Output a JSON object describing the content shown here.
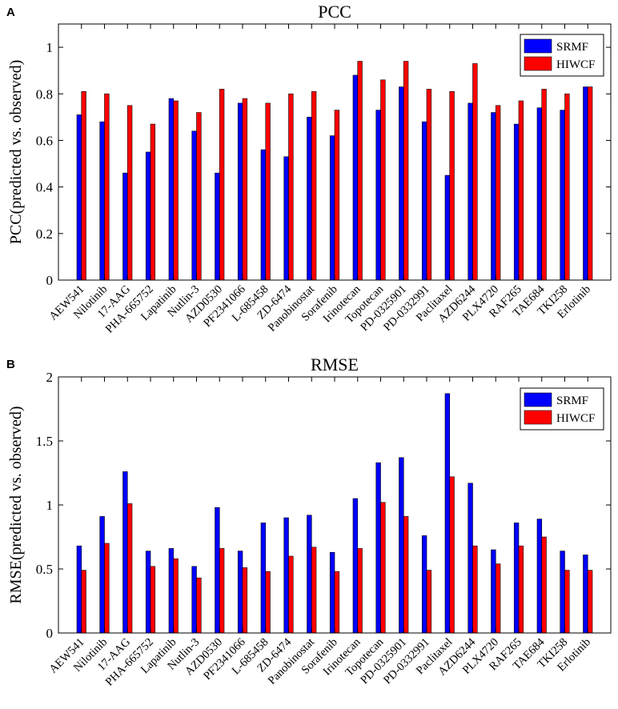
{
  "colors": {
    "srmf": "#0000ff",
    "hiwcf": "#ff0000",
    "axis": "#000000"
  },
  "chart_data": [
    {
      "panel": "A",
      "type": "bar",
      "title": "PCC",
      "xlabel": "",
      "ylabel": "PCC(predicted vs. observed)",
      "ylim": [
        0,
        1.1
      ],
      "yticks": [
        0,
        0.2,
        0.4,
        0.6,
        0.8,
        1
      ],
      "ytick_labels": [
        "0",
        "0.2",
        "0.4",
        "0.6",
        "0.8",
        "1"
      ],
      "legend_position": "top-right",
      "categories": [
        "AEW541",
        "Nilotinib",
        "17-AAG",
        "PHA-665752",
        "Lapatinib",
        "Nutlin-3",
        "AZD0530",
        "PF2341066",
        "L-685458",
        "ZD-6474",
        "Panobinostat",
        "Sorafenib",
        "Irinotecan",
        "Topotecan",
        "PD-0325901",
        "PD-0332991",
        "Paclitaxel",
        "AZD6244",
        "PLX4720",
        "RAF265",
        "TAE684",
        "TKI258",
        "Erlotinib"
      ],
      "series": [
        {
          "name": "SRMF",
          "values": [
            0.71,
            0.68,
            0.46,
            0.55,
            0.78,
            0.64,
            0.46,
            0.76,
            0.56,
            0.53,
            0.7,
            0.62,
            0.88,
            0.73,
            0.83,
            0.68,
            0.45,
            0.76,
            0.72,
            0.67,
            0.74,
            0.73,
            0.83
          ]
        },
        {
          "name": "HIWCF",
          "values": [
            0.81,
            0.8,
            0.75,
            0.67,
            0.77,
            0.72,
            0.82,
            0.78,
            0.76,
            0.8,
            0.81,
            0.73,
            0.94,
            0.86,
            0.94,
            0.82,
            0.81,
            0.93,
            0.75,
            0.77,
            0.82,
            0.8,
            0.83
          ]
        }
      ]
    },
    {
      "panel": "B",
      "type": "bar",
      "title": "RMSE",
      "xlabel": "",
      "ylabel": "RMSE(predicted vs. observed)",
      "ylim": [
        0,
        2
      ],
      "yticks": [
        0,
        0.5,
        1,
        1.5,
        2
      ],
      "ytick_labels": [
        "0",
        "0.5",
        "1",
        "1.5",
        "2"
      ],
      "legend_position": "top-right",
      "categories": [
        "AEW541",
        "Nilotinib",
        "17-AAG",
        "PHA-665752",
        "Lapatinib",
        "Nutlin-3",
        "AZD0530",
        "PF2341066",
        "L-685458",
        "ZD-6474",
        "Panobinostat",
        "Sorafenib",
        "Irinotecan",
        "Topotecan",
        "PD-0325901",
        "PD-0332991",
        "Paclitaxel",
        "AZD6244",
        "PLX4720",
        "RAF265",
        "TAE684",
        "TKI258",
        "Erlotinib"
      ],
      "series": [
        {
          "name": "SRMF",
          "values": [
            0.68,
            0.91,
            1.26,
            0.64,
            0.66,
            0.52,
            0.98,
            0.64,
            0.86,
            0.9,
            0.92,
            0.63,
            1.05,
            1.33,
            1.37,
            0.76,
            1.87,
            1.17,
            0.65,
            0.86,
            0.89,
            0.64,
            0.61
          ]
        },
        {
          "name": "HIWCF",
          "values": [
            0.49,
            0.7,
            1.01,
            0.52,
            0.58,
            0.43,
            0.66,
            0.51,
            0.48,
            0.6,
            0.67,
            0.48,
            0.66,
            1.02,
            0.91,
            0.49,
            1.22,
            0.68,
            0.54,
            0.68,
            0.75,
            0.49,
            0.49
          ]
        }
      ]
    }
  ]
}
